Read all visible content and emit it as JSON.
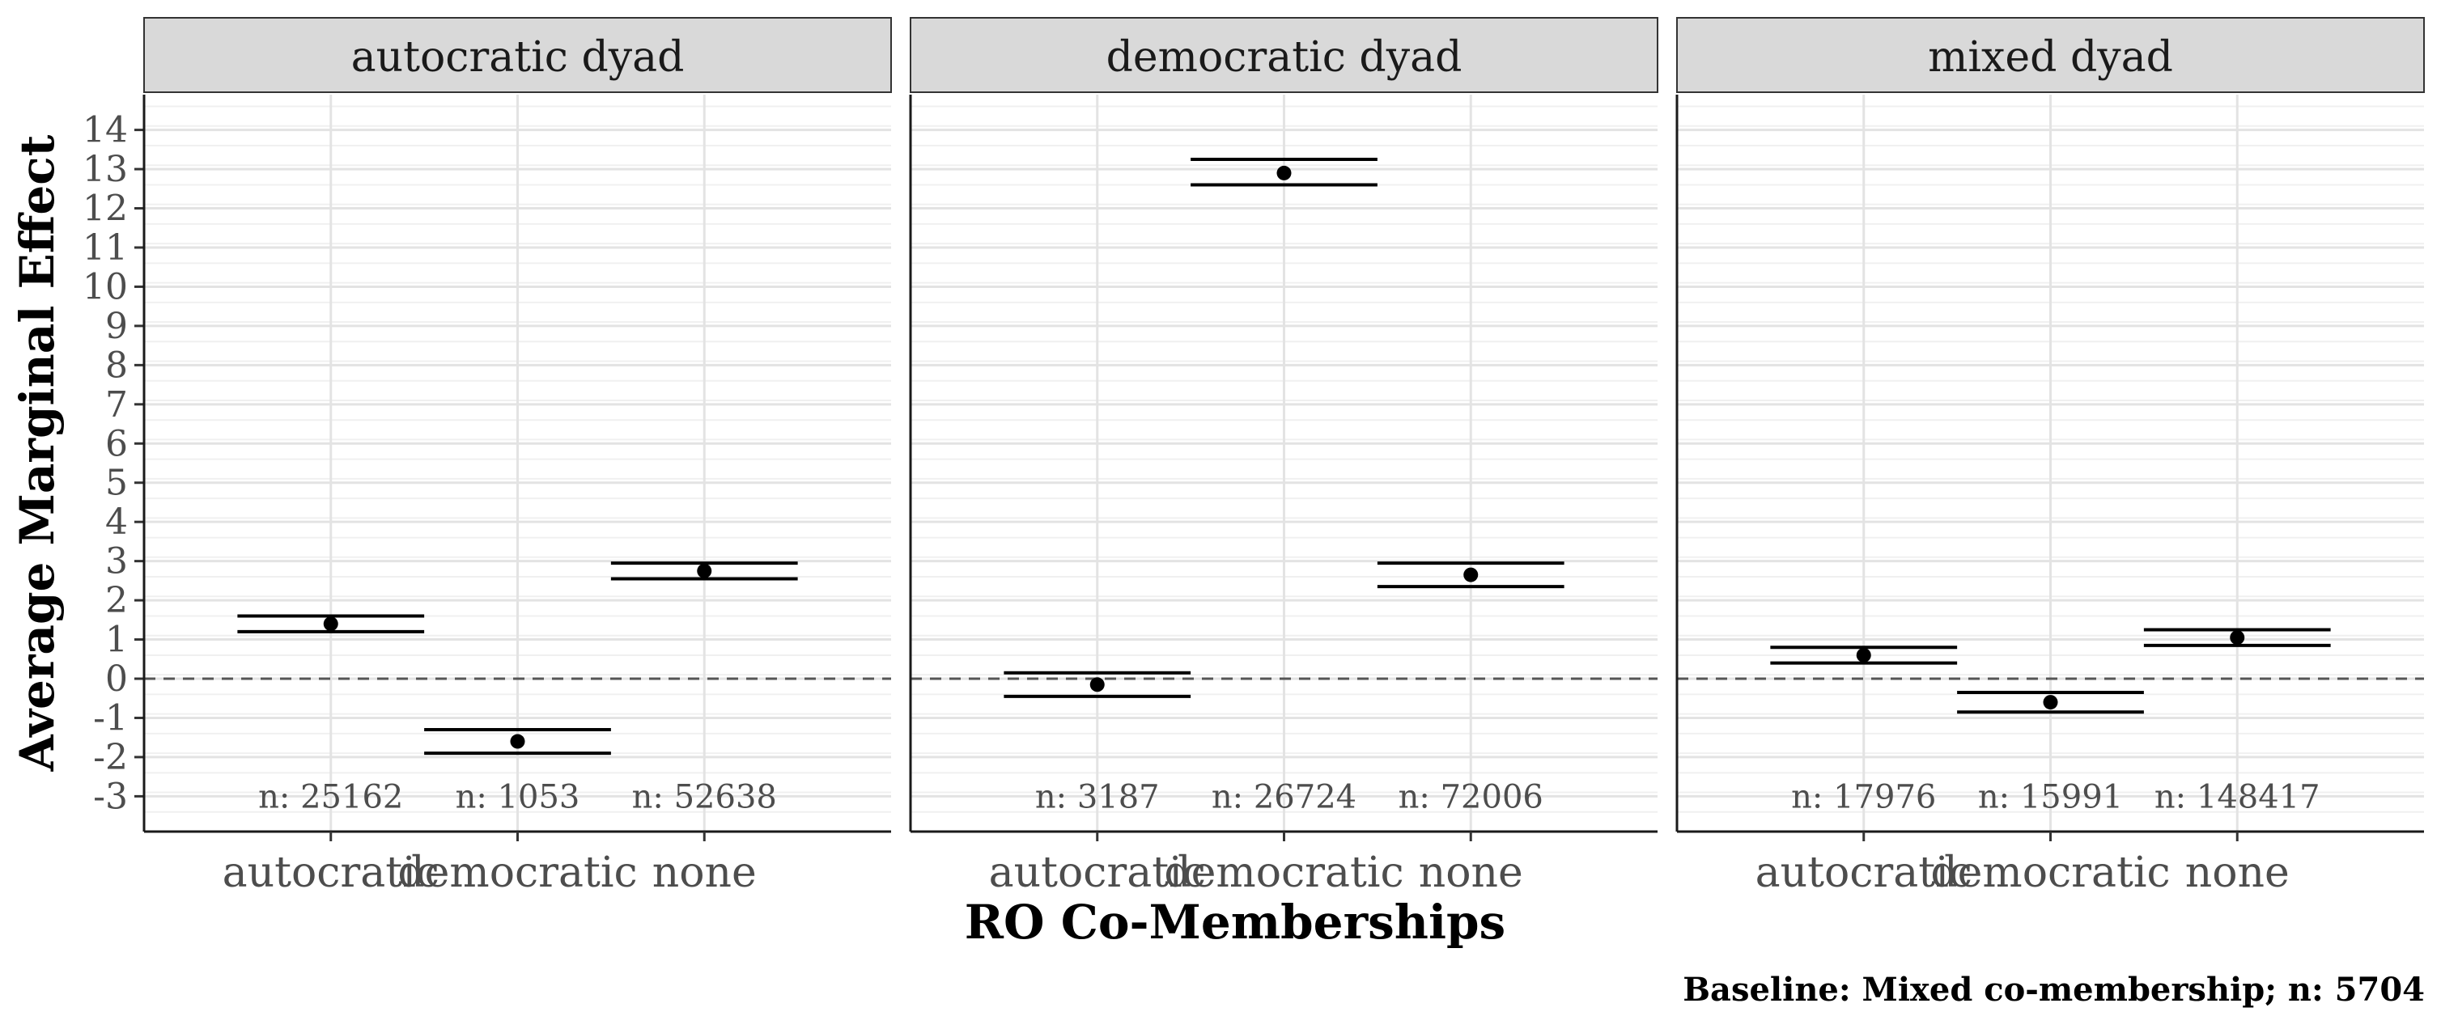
{
  "chart_data": {
    "type": "scatter",
    "subtype": "point-with-interval-bounds",
    "ylabel": "Average Marginal Effect",
    "xlabel": "RO Co-Memberships",
    "caption": "Baseline: Mixed co-membership; n: 5704",
    "ylim": [
      -3.9,
      14.9
    ],
    "y_ticks": [
      -3,
      -2,
      -1,
      0,
      1,
      2,
      3,
      4,
      5,
      6,
      7,
      8,
      9,
      10,
      11,
      12,
      13,
      14
    ],
    "y_tick_labels": [
      "-3",
      "-2",
      "-1",
      "0",
      "1",
      "2",
      "3",
      "4",
      "5",
      "6",
      "7",
      "8",
      "9",
      "10",
      "11",
      "12",
      "13",
      "14"
    ],
    "reference_line": 0,
    "grid": true,
    "categories": [
      "autocratic",
      "democratic",
      "none"
    ],
    "panels": [
      {
        "title": "autocratic dyad",
        "points": [
          {
            "category": "autocratic",
            "estimate": 1.4,
            "lower": 1.2,
            "upper": 1.6,
            "n_label": "n: 25162"
          },
          {
            "category": "democratic",
            "estimate": -1.6,
            "lower": -1.9,
            "upper": -1.3,
            "n_label": "n: 1053"
          },
          {
            "category": "none",
            "estimate": 2.75,
            "lower": 2.55,
            "upper": 2.95,
            "n_label": "n: 52638"
          }
        ]
      },
      {
        "title": "democratic dyad",
        "points": [
          {
            "category": "autocratic",
            "estimate": -0.15,
            "lower": -0.45,
            "upper": 0.15,
            "n_label": "n: 3187"
          },
          {
            "category": "democratic",
            "estimate": 12.9,
            "lower": 12.6,
            "upper": 13.25,
            "n_label": "n: 26724"
          },
          {
            "category": "none",
            "estimate": 2.65,
            "lower": 2.35,
            "upper": 2.95,
            "n_label": "n: 72006"
          }
        ]
      },
      {
        "title": "mixed dyad",
        "points": [
          {
            "category": "autocratic",
            "estimate": 0.6,
            "lower": 0.4,
            "upper": 0.8,
            "n_label": "n: 17976"
          },
          {
            "category": "democratic",
            "estimate": -0.6,
            "lower": -0.85,
            "upper": -0.35,
            "n_label": "n: 15991"
          },
          {
            "category": "none",
            "estimate": 1.05,
            "lower": 0.85,
            "upper": 1.25,
            "n_label": "n: 148417"
          }
        ]
      }
    ]
  }
}
